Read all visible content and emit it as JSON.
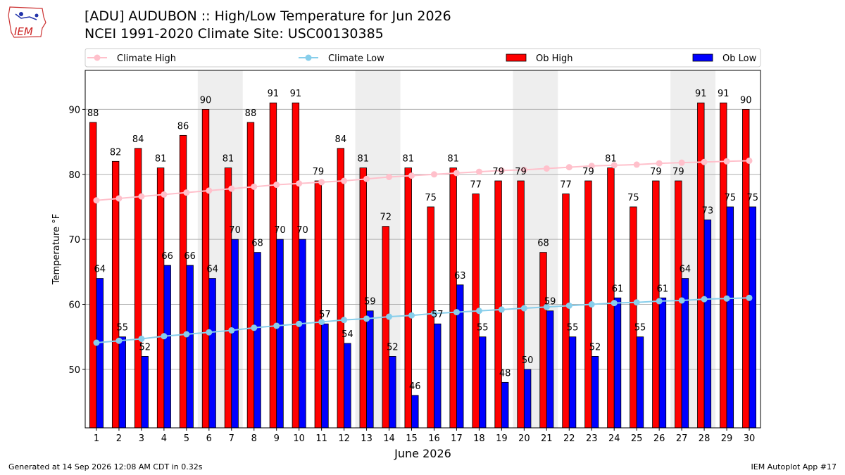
{
  "header": {
    "title_line1": "[ADU] AUDUBON :: High/Low Temperature for Jun 2026",
    "title_line2": "NCEI 1991-2020 Climate Site: USC00130385",
    "logo_text": "IEM"
  },
  "footer": {
    "generated": "Generated at 14 Sep 2026 12:08 AM CDT in 0.32s",
    "app": "IEM Autoplot App #17"
  },
  "colors": {
    "ob_high": "#ff0000",
    "ob_low": "#0000ff",
    "climate_high": "#ffc0cb",
    "climate_low": "#87ceeb",
    "weekend_shade": "#eeeeee",
    "grid": "#b0b0b0"
  },
  "chart_data": {
    "type": "bar",
    "xlabel": "June 2026",
    "ylabel": "Temperature °F",
    "ylim": [
      41,
      96
    ],
    "yticks": [
      50,
      60,
      70,
      80,
      90
    ],
    "grid": "horizontal",
    "legend_placement": "top",
    "categories": [
      "1",
      "2",
      "3",
      "4",
      "5",
      "6",
      "7",
      "8",
      "9",
      "10",
      "11",
      "12",
      "13",
      "14",
      "15",
      "16",
      "17",
      "18",
      "19",
      "20",
      "21",
      "22",
      "23",
      "24",
      "25",
      "26",
      "27",
      "28",
      "29",
      "30"
    ],
    "shaded_days": [
      [
        6,
        7
      ],
      [
        13,
        14
      ],
      [
        20,
        21
      ],
      [
        27,
        28
      ]
    ],
    "series": [
      {
        "name": "Ob High",
        "kind": "bar",
        "values": [
          88,
          82,
          84,
          81,
          86,
          90,
          81,
          88,
          91,
          91,
          79,
          84,
          81,
          72,
          81,
          75,
          81,
          77,
          79,
          79,
          68,
          77,
          79,
          81,
          75,
          79,
          79,
          91,
          91,
          90
        ]
      },
      {
        "name": "Ob Low",
        "kind": "bar",
        "values": [
          64,
          55,
          52,
          66,
          66,
          64,
          70,
          68,
          70,
          70,
          57,
          54,
          59,
          52,
          46,
          57,
          63,
          55,
          48,
          50,
          59,
          55,
          52,
          61,
          55,
          61,
          64,
          73,
          75,
          75
        ]
      },
      {
        "name": "Climate High",
        "kind": "line",
        "values": [
          76.0,
          76.3,
          76.6,
          76.9,
          77.2,
          77.5,
          77.8,
          78.1,
          78.4,
          78.6,
          78.8,
          79.0,
          79.3,
          79.6,
          79.8,
          80.0,
          80.2,
          80.4,
          80.6,
          80.7,
          80.9,
          81.1,
          81.3,
          81.4,
          81.5,
          81.7,
          81.8,
          81.9,
          82.0,
          82.1
        ]
      },
      {
        "name": "Climate Low",
        "kind": "line",
        "values": [
          54.1,
          54.4,
          54.7,
          55.1,
          55.4,
          55.7,
          56.0,
          56.4,
          56.7,
          57.0,
          57.3,
          57.6,
          57.8,
          58.1,
          58.3,
          58.6,
          58.8,
          59.0,
          59.2,
          59.4,
          59.6,
          59.8,
          60.0,
          60.2,
          60.3,
          60.5,
          60.6,
          60.8,
          60.9,
          61.0
        ]
      }
    ]
  }
}
